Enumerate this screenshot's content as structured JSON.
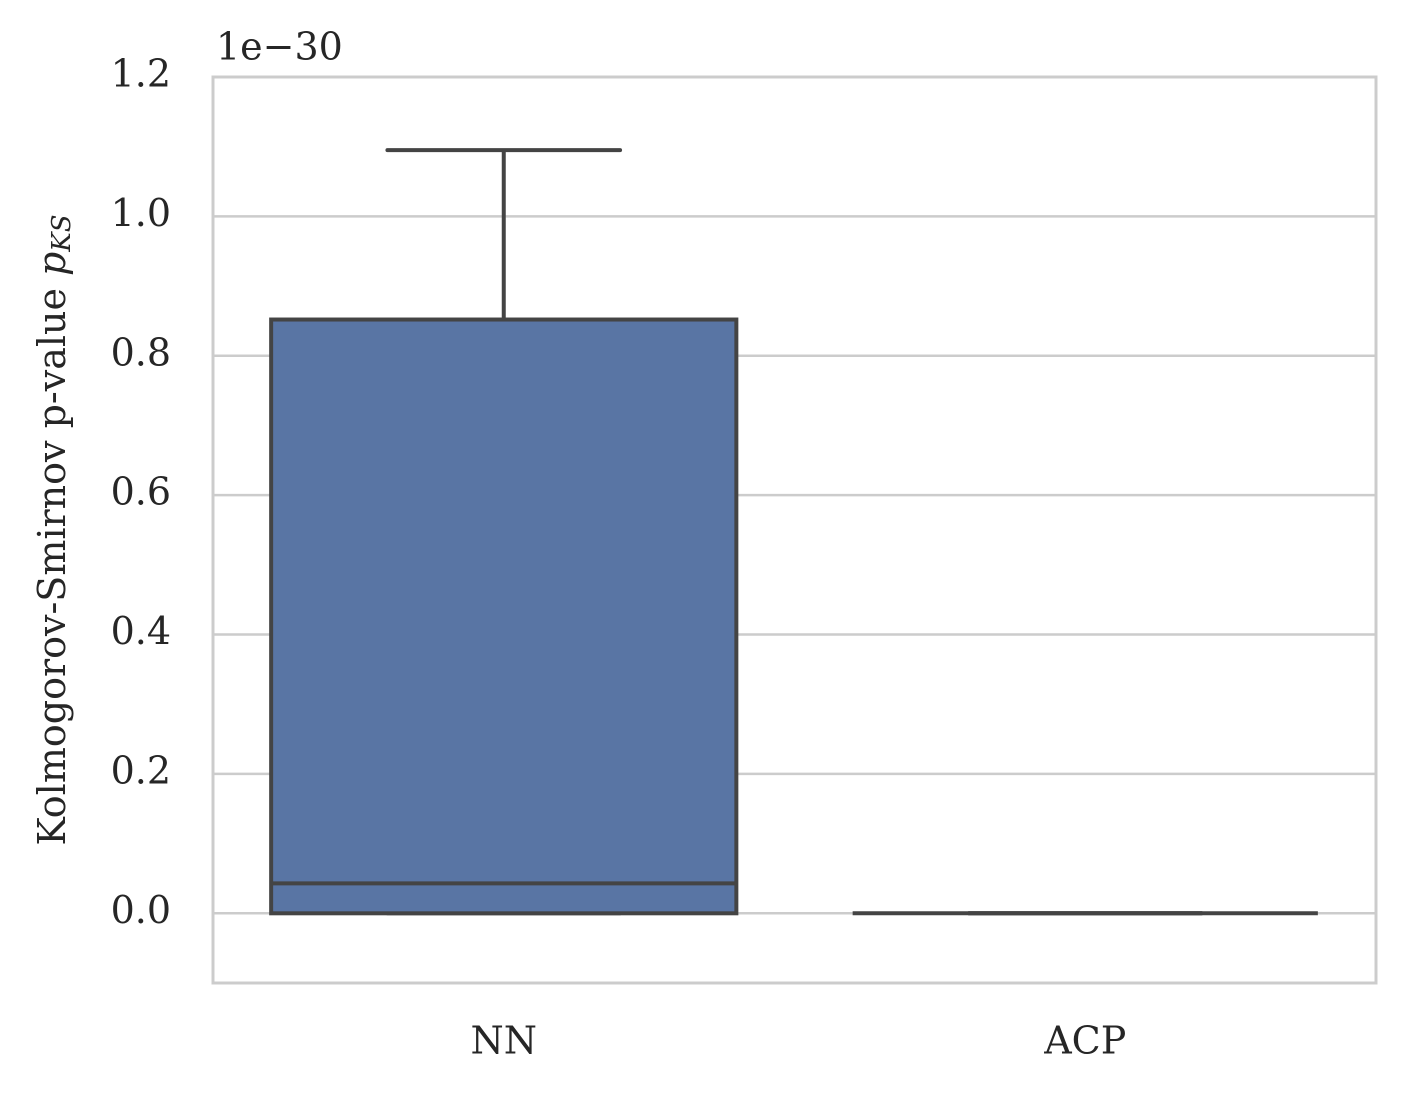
{
  "chart_data": {
    "type": "box",
    "offset_text": "1e−30",
    "ylabel": "Kolmogorov-Smirnov p-value",
    "ylabel_symbol": "p",
    "ylabel_subscript": "KS",
    "categories": [
      "NN",
      "ACP"
    ],
    "whislo": [
      0,
      0
    ],
    "q1": [
      0,
      0
    ],
    "median": [
      0.043,
      0
    ],
    "q3": [
      0.852,
      0
    ],
    "whishi": [
      1.095,
      0
    ],
    "color": "#5975a4",
    "line_color": "#444444",
    "ylim": [
      -0.1,
      1.2
    ],
    "yticks": [
      {
        "value": 0,
        "label": "0.0"
      },
      0.2,
      0.4,
      0.6,
      0.8,
      {
        "value": 1,
        "label": "1.0"
      },
      1.2
    ],
    "grid": true
  }
}
